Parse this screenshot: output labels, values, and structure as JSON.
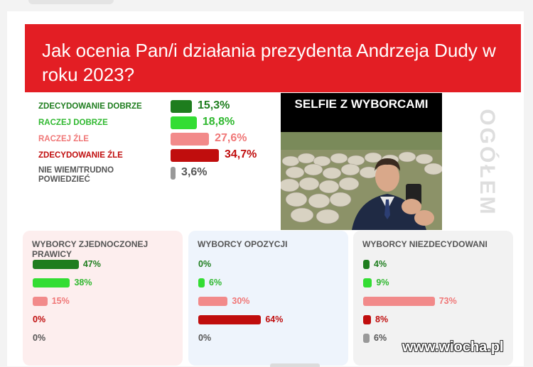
{
  "header": {
    "title": "Jak ocenia Pan/i działania prezydenta Andrzeja Dudy w roku 2023?"
  },
  "side_label": "OGÓŁEM",
  "photo": {
    "caption": "SELFIE Z WYBORCAMI"
  },
  "watermark": "www.wiocha.pl",
  "chart_data": [
    {
      "type": "bar",
      "title": "",
      "categories": [
        "ZDECYDOWANIE DOBRZE",
        "RACZEJ DOBRZE",
        "RACZEJ ŹLE",
        "ZDECYDOWANIE ŹLE",
        "NIE WIEM/TRUDNO POWIEDZIEĆ"
      ],
      "values": [
        15.3,
        18.8,
        27.6,
        34.7,
        3.6
      ],
      "value_labels": [
        "15,3%",
        "18,8%",
        "27,6%",
        "34,7%",
        "3,6%"
      ],
      "colors": [
        "#1e7d1e",
        "#33dd33",
        "#f28a8a",
        "#c00d0d",
        "#999999"
      ],
      "label_colors": [
        "#1e7d1e",
        "#2fb82f",
        "#f07777",
        "#c00d0d",
        "#555555"
      ],
      "value_colors": [
        "#1e7d1e",
        "#2fb82f",
        "#f07777",
        "#c00d0d",
        "#555555"
      ],
      "group": "OGÓŁEM"
    },
    {
      "type": "bar",
      "title": "WYBORCY ZJEDNOCZONEJ PRAWICY",
      "values": [
        47,
        38,
        15,
        0,
        0
      ],
      "value_labels": [
        "47%",
        "38%",
        "15%",
        "0%",
        "0%"
      ]
    },
    {
      "type": "bar",
      "title": "WYBORCY OPOZYCJI",
      "values": [
        0,
        6,
        30,
        64,
        0
      ],
      "value_labels": [
        "0%",
        "6%",
        "30%",
        "64%",
        "0%"
      ]
    },
    {
      "type": "bar",
      "title": "WYBORCY NIEZDECYDOWANI",
      "values": [
        4,
        9,
        73,
        8,
        6
      ],
      "value_labels": [
        "4%",
        "9%",
        "73%",
        "8%",
        "6%"
      ]
    }
  ],
  "colors": {
    "brand_red": "#e31e24",
    "panel_bgs": [
      "#fdeeee",
      "#eef4fc",
      "#f2f2f2"
    ]
  }
}
